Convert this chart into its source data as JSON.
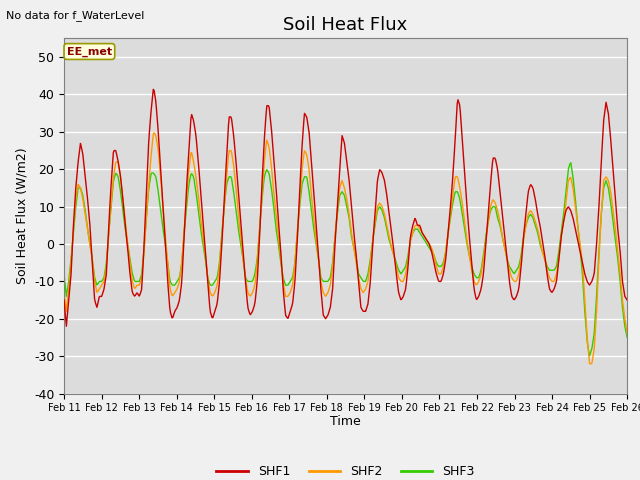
{
  "title": "Soil Heat Flux",
  "ylabel": "Soil Heat Flux (W/m2)",
  "xlabel": "Time",
  "annotation_text": "No data for f_WaterLevel",
  "box_label": "EE_met",
  "ylim": [
    -40,
    55
  ],
  "yticks": [
    -40,
    -30,
    -20,
    -10,
    0,
    10,
    20,
    30,
    40,
    50
  ],
  "plot_bg_color": "#dcdcdc",
  "fig_bg_color": "#f0f0f0",
  "shf1_color": "#cc0000",
  "shf2_color": "#ff9900",
  "shf3_color": "#33cc00",
  "legend_labels": [
    "SHF1",
    "SHF2",
    "SHF3"
  ],
  "x_tick_labels": [
    "Feb 11",
    "Feb 12",
    "Feb 13",
    "Feb 14",
    "Feb 15",
    "Feb 16",
    "Feb 17",
    "Feb 18",
    "Feb 19",
    "Feb 20",
    "Feb 21",
    "Feb 22",
    "Feb 23",
    "Feb 24",
    "Feb 25",
    "Feb 26"
  ],
  "n_days": 15,
  "pts_per_day": 48,
  "shf1_data": [
    -15,
    -22,
    -15,
    -8,
    5,
    15,
    22,
    27,
    24,
    18,
    12,
    5,
    -5,
    -15,
    -17,
    -14,
    -14,
    -12,
    -8,
    5,
    16,
    25,
    25,
    22,
    18,
    12,
    5,
    -1,
    -8,
    -13,
    -14,
    -13,
    -14,
    -12,
    0,
    15,
    28,
    36,
    42,
    38,
    30,
    20,
    10,
    0,
    -10,
    -18,
    -20,
    -18,
    -17,
    -15,
    -10,
    2,
    15,
    25,
    35,
    33,
    29,
    22,
    14,
    6,
    -2,
    -10,
    -18,
    -20,
    -18,
    -16,
    -10,
    0,
    12,
    23,
    34,
    34,
    29,
    22,
    14,
    6,
    -2,
    -10,
    -17,
    -19,
    -18,
    -16,
    -10,
    2,
    16,
    28,
    37,
    37,
    31,
    23,
    15,
    6,
    -2,
    -12,
    -19,
    -20,
    -18,
    -16,
    -10,
    1,
    14,
    26,
    35,
    34,
    30,
    22,
    14,
    5,
    -3,
    -12,
    -19,
    -20,
    -19,
    -17,
    -12,
    0,
    10,
    20,
    29,
    27,
    22,
    17,
    10,
    3,
    -3,
    -10,
    -17,
    -18,
    -18,
    -16,
    -10,
    0,
    8,
    17,
    20,
    19,
    17,
    13,
    8,
    3,
    -2,
    -8,
    -13,
    -15,
    -14,
    -12,
    -6,
    2,
    5,
    7,
    5,
    5,
    3,
    2,
    1,
    0,
    -2,
    -5,
    -8,
    -10,
    -10,
    -8,
    -4,
    3,
    10,
    18,
    28,
    39,
    37,
    28,
    19,
    10,
    2,
    -5,
    -12,
    -15,
    -14,
    -12,
    -8,
    0,
    8,
    16,
    23,
    23,
    20,
    14,
    8,
    2,
    -4,
    -10,
    -14,
    -15,
    -14,
    -12,
    -6,
    2,
    8,
    14,
    16,
    15,
    12,
    8,
    5,
    1,
    -3,
    -8,
    -12,
    -13,
    -12,
    -10,
    -4,
    2,
    6,
    9,
    10,
    9,
    7,
    4,
    1,
    -2,
    -5,
    -8,
    -10,
    -11,
    -10,
    -8,
    0,
    10,
    22,
    33,
    38,
    35,
    28,
    20,
    12,
    4,
    -2,
    -10,
    -14,
    -15
  ],
  "shf2_data": [
    -13,
    -18,
    -12,
    -5,
    4,
    12,
    16,
    15,
    12,
    8,
    4,
    0,
    -4,
    -10,
    -13,
    -12,
    -11,
    -10,
    -6,
    3,
    11,
    18,
    22,
    22,
    18,
    12,
    6,
    0,
    -5,
    -10,
    -12,
    -11,
    -11,
    -9,
    -2,
    8,
    16,
    24,
    30,
    29,
    25,
    18,
    10,
    2,
    -5,
    -12,
    -14,
    -13,
    -12,
    -10,
    -5,
    4,
    12,
    20,
    25,
    22,
    18,
    13,
    7,
    2,
    -3,
    -9,
    -13,
    -14,
    -13,
    -11,
    -6,
    2,
    10,
    18,
    25,
    25,
    21,
    15,
    8,
    2,
    -4,
    -9,
    -13,
    -14,
    -13,
    -11,
    -5,
    4,
    13,
    22,
    28,
    26,
    21,
    14,
    8,
    2,
    -4,
    -10,
    -14,
    -14,
    -13,
    -11,
    -5,
    3,
    11,
    20,
    25,
    24,
    20,
    13,
    7,
    1,
    -4,
    -10,
    -13,
    -14,
    -13,
    -11,
    -6,
    2,
    9,
    15,
    17,
    15,
    12,
    8,
    3,
    -1,
    -5,
    -9,
    -12,
    -13,
    -12,
    -10,
    -5,
    1,
    6,
    10,
    11,
    10,
    8,
    5,
    2,
    -1,
    -3,
    -6,
    -9,
    -10,
    -10,
    -8,
    -4,
    1,
    3,
    5,
    5,
    4,
    3,
    2,
    1,
    0,
    -1,
    -3,
    -6,
    -8,
    -8,
    -6,
    -2,
    3,
    8,
    13,
    18,
    18,
    15,
    11,
    6,
    1,
    -3,
    -7,
    -10,
    -11,
    -10,
    -8,
    -4,
    1,
    6,
    10,
    12,
    11,
    9,
    6,
    2,
    -1,
    -4,
    -7,
    -9,
    -10,
    -10,
    -8,
    -4,
    1,
    5,
    8,
    9,
    8,
    6,
    4,
    1,
    -2,
    -4,
    -7,
    -9,
    -10,
    -10,
    -8,
    -4,
    2,
    6,
    11,
    17,
    18,
    15,
    10,
    5,
    0,
    -5,
    -15,
    -25,
    -32,
    -32,
    -28,
    -18,
    -4,
    8,
    17,
    18,
    17,
    14,
    9,
    4,
    -2,
    -8,
    -15,
    -20,
    -24
  ],
  "shf3_data": [
    -8,
    -14,
    -10,
    -4,
    3,
    10,
    15,
    15,
    13,
    9,
    4,
    0,
    -4,
    -9,
    -11,
    -10,
    -10,
    -9,
    -5,
    3,
    10,
    17,
    19,
    18,
    14,
    9,
    4,
    0,
    -4,
    -8,
    -10,
    -10,
    -10,
    -8,
    -1,
    8,
    15,
    19,
    19,
    18,
    14,
    9,
    4,
    0,
    -5,
    -10,
    -11,
    -11,
    -10,
    -9,
    -5,
    3,
    10,
    16,
    19,
    18,
    14,
    9,
    4,
    0,
    -4,
    -9,
    -11,
    -11,
    -10,
    -9,
    -5,
    3,
    10,
    16,
    18,
    18,
    14,
    9,
    4,
    0,
    -4,
    -9,
    -10,
    -10,
    -10,
    -8,
    -4,
    4,
    12,
    18,
    20,
    19,
    15,
    10,
    4,
    0,
    -5,
    -9,
    -11,
    -11,
    -10,
    -9,
    -5,
    3,
    10,
    16,
    18,
    18,
    14,
    9,
    4,
    0,
    -4,
    -9,
    -10,
    -10,
    -10,
    -9,
    -5,
    2,
    8,
    13,
    14,
    13,
    10,
    7,
    2,
    -1,
    -4,
    -8,
    -9,
    -10,
    -10,
    -8,
    -4,
    1,
    5,
    9,
    10,
    9,
    7,
    4,
    1,
    -1,
    -3,
    -5,
    -7,
    -8,
    -7,
    -6,
    -3,
    1,
    3,
    4,
    4,
    3,
    2,
    1,
    0,
    -1,
    -2,
    -3,
    -5,
    -6,
    -6,
    -5,
    -2,
    3,
    7,
    11,
    14,
    14,
    12,
    8,
    4,
    0,
    -3,
    -6,
    -8,
    -9,
    -9,
    -7,
    -3,
    2,
    6,
    9,
    10,
    10,
    7,
    5,
    2,
    -1,
    -4,
    -6,
    -7,
    -8,
    -7,
    -6,
    -3,
    2,
    5,
    7,
    8,
    7,
    5,
    3,
    0,
    -2,
    -4,
    -6,
    -7,
    -7,
    -7,
    -6,
    -2,
    3,
    8,
    14,
    20,
    22,
    18,
    12,
    5,
    -1,
    -8,
    -18,
    -26,
    -30,
    -28,
    -24,
    -14,
    -2,
    8,
    15,
    17,
    15,
    11,
    6,
    1,
    -4,
    -10,
    -17,
    -22,
    -25
  ]
}
